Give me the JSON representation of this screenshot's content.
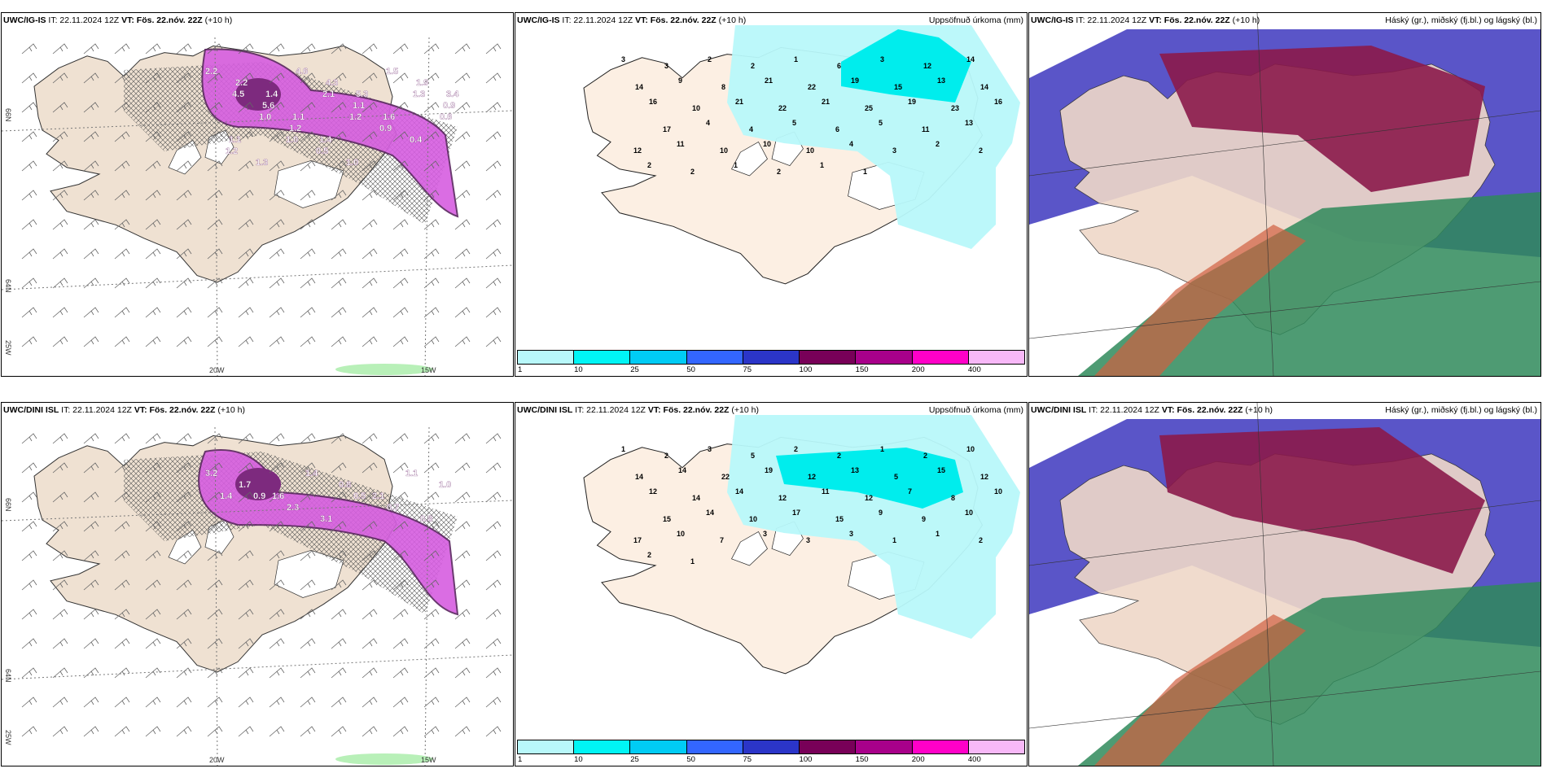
{
  "panels": [
    {
      "model": "UWC/IG-IS",
      "it": "IT: 22.11.2024 12Z",
      "vt_label": "VT: Fös. 22.nóv. 22Z",
      "lead": "(+10 h)",
      "kind": "wind"
    },
    {
      "model": "UWC/IG-IS",
      "it": "IT: 22.11.2024 12Z",
      "vt_label": "VT: Fös. 22.nóv. 22Z",
      "lead": "(+10 h)",
      "kind": "precip",
      "right_title": "Uppsöfnuð úrkoma (mm)"
    },
    {
      "model": "UWC/IG-IS",
      "it": "IT: 22.11.2024 12Z",
      "vt_label": "VT: Fös. 22.nóv. 22Z",
      "lead": "(+10 h)",
      "kind": "cloud",
      "right_title": "Háský (gr.), miðský (fj.bl.) og lágský (bl.)"
    },
    {
      "model": "UWC/DINI ISL",
      "it": "IT: 22.11.2024 12Z",
      "vt_label": "VT: Fös. 22.nóv. 22Z",
      "lead": "(+10 h)",
      "kind": "wind"
    },
    {
      "model": "UWC/DINI ISL",
      "it": "IT: 22.11.2024 12Z",
      "vt_label": "VT: Fös. 22.nóv. 22Z",
      "lead": "(+10 h)",
      "kind": "precip",
      "right_title": "Uppsöfnuð úrkoma (mm)"
    },
    {
      "model": "UWC/DINI ISL",
      "it": "IT: 22.11.2024 12Z",
      "vt_label": "VT: Fös. 22.nóv. 22Z",
      "lead": "(+10 h)",
      "kind": "cloud",
      "right_title": "Háský (gr.), miðský (fj.bl.) og lágský (bl.)"
    }
  ],
  "grid_labels": {
    "lat_n": "66N",
    "lat_s": "64N",
    "lon_w": "20W",
    "lon_e": "15W",
    "corner": "25W"
  },
  "colorbar": {
    "colors": [
      "#b8f8fa",
      "#00f5f5",
      "#00ccf5",
      "#3366ff",
      "#2b35c8",
      "#780058",
      "#a8008a",
      "#ff00c8",
      "#f8b8f8"
    ],
    "ticks": [
      "1",
      "10",
      "25",
      "50",
      "75",
      "100",
      "150",
      "200",
      "400"
    ]
  },
  "wind_labels_top": [
    "2.2",
    "2.2",
    "1.4",
    "4.6",
    "4.3",
    "5.3",
    "1.5",
    "1.9",
    "3.4",
    "4.5",
    "5.6",
    "1.1",
    "2.1",
    "1.1",
    "1.6",
    "1.3",
    "0.9",
    "1.1",
    "1.0",
    "1.2",
    "1.4",
    "1.2",
    "0.9",
    "0.4",
    "0.6",
    "1.2",
    "1.3",
    "1.0",
    "0.5",
    "1.0"
  ],
  "wind_labels_bottom": [
    "3.2",
    "1.7",
    "1.6",
    "1.4",
    "0.8",
    "2.1",
    "1.1",
    "1.0",
    "1.4",
    "0.9",
    "2.3",
    "3.1",
    "0.5",
    "0.7",
    "0.8"
  ],
  "precip_labels_top": [
    "3",
    "3",
    "2",
    "2",
    "1",
    "6",
    "3",
    "12",
    "14",
    "14",
    "9",
    "8",
    "21",
    "22",
    "19",
    "15",
    "13",
    "14",
    "16",
    "10",
    "21",
    "22",
    "21",
    "25",
    "19",
    "23",
    "16",
    "17",
    "4",
    "4",
    "5",
    "6",
    "5",
    "11",
    "13",
    "12",
    "11",
    "10",
    "10",
    "10",
    "4",
    "3",
    "2",
    "2",
    "2",
    "2",
    "1",
    "2",
    "1",
    "1"
  ],
  "precip_labels_bottom": [
    "1",
    "2",
    "3",
    "5",
    "2",
    "2",
    "1",
    "2",
    "10",
    "14",
    "14",
    "22",
    "19",
    "12",
    "13",
    "5",
    "15",
    "12",
    "12",
    "14",
    "14",
    "12",
    "11",
    "12",
    "7",
    "8",
    "10",
    "15",
    "14",
    "10",
    "17",
    "15",
    "9",
    "9",
    "10",
    "17",
    "10",
    "7",
    "3",
    "3",
    "3",
    "1",
    "1",
    "2",
    "2",
    "1"
  ]
}
